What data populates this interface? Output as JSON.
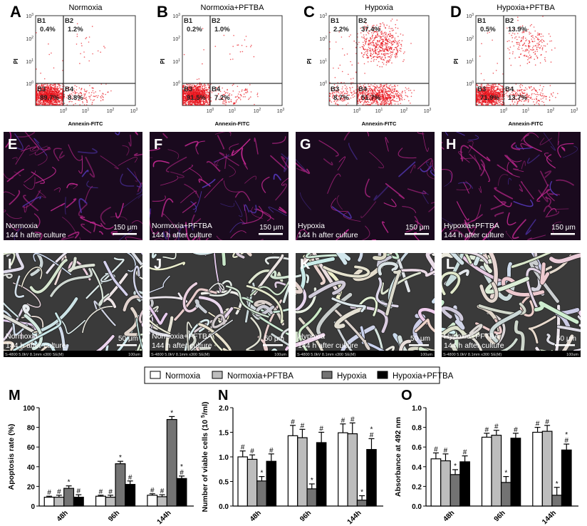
{
  "colors": {
    "normoxia": "#ffffff",
    "normoxia_pftba": "#bdbdbd",
    "hypoxia": "#737373",
    "hypoxia_pftba": "#000000",
    "flow_dots": "#e8141c",
    "fluor_fiber": "#d02a9a"
  },
  "flow_panels": [
    {
      "letter": "A",
      "title": "Normoxia",
      "quadrants": {
        "B1": "0.4%",
        "B2": "1.2%",
        "B3": "89.7%",
        "B4": "8.8%"
      }
    },
    {
      "letter": "B",
      "title": "Normoxia+PFTBA",
      "quadrants": {
        "B1": "0.2%",
        "B2": "1.0%",
        "B3": "91.5%",
        "B4": "7.2%"
      }
    },
    {
      "letter": "C",
      "title": "Hypoxia",
      "quadrants": {
        "B1": "2.2%",
        "B2": "37.4%",
        "B3": "8.7%",
        "B4": "51.7%"
      }
    },
    {
      "letter": "D",
      "title": "Hypoxia+PFTBA",
      "quadrants": {
        "B1": "0.5%",
        "B2": "13.9%",
        "B3": "71.9%",
        "B4": "13.7%"
      }
    }
  ],
  "flow_axes": {
    "xlabel": "Annexin-FITC",
    "ylabel": "PI",
    "tick_base": "10",
    "y_exponents": [
      "3",
      "2",
      "1",
      "0"
    ],
    "x_exponents": [
      "0",
      "1",
      "2",
      "3"
    ]
  },
  "fluor_panels": [
    {
      "letter": "E",
      "group": "Normoxia",
      "time": "144 h after culture",
      "scale": "150 μm"
    },
    {
      "letter": "F",
      "group": "Normoxia+PFTBA",
      "time": "144 h after culture",
      "scale": "150 μm"
    },
    {
      "letter": "G",
      "group": "Hypoxia",
      "time": "144 h after culture",
      "scale": "150 μm"
    },
    {
      "letter": "H",
      "group": "Hypoxia+PFTBA",
      "time": "144 h after culture",
      "scale": "150 μm"
    }
  ],
  "sem_panels": [
    {
      "letter": "I",
      "group": "Normoxia",
      "time": "144 h after culture",
      "scale": "50 μm",
      "info": "S-4800 5.0kV 8.1mm x300 SE(M)",
      "info_scale": "100um"
    },
    {
      "letter": "J",
      "group": "Normoxia+PFTBA",
      "time": "144 h after culture",
      "scale": "50 μm",
      "info": "S-4800 5.0kV 8.1mm x300 SE(M)",
      "info_scale": "100um"
    },
    {
      "letter": "K",
      "group": "Hypoxia",
      "time": "144 h after culture",
      "scale": "50 μm",
      "info": "S-4800 5.0kV 8.1mm x300 SE(M)",
      "info_scale": "100um"
    },
    {
      "letter": "L",
      "group": "Hypoxia+PFTBA",
      "time": "144 h after culture",
      "scale": "50 μm",
      "info": "S-4800 5.0kV 8.1mm x300 SE(M)",
      "info_scale": "100um"
    }
  ],
  "legend": {
    "placement": "top-center",
    "items": [
      "Normoxia",
      "Normoxia+PFTBA",
      "Hypoxia",
      "Hypoxia+PFTBA"
    ]
  },
  "chart_data": [
    {
      "letter": "M",
      "type": "bar",
      "categories": [
        "48h",
        "96h",
        "144h"
      ],
      "ylabel": "Apoptosis rate  (%)",
      "ylabel_sup": "",
      "ylabel_end": "",
      "ylim": [
        0,
        100
      ],
      "yticks": [
        "0",
        "20",
        "40",
        "60",
        "80",
        "100"
      ],
      "series": [
        {
          "name": "Normoxia",
          "values": [
            9,
            10,
            11
          ],
          "errors": [
            1,
            1,
            1.5
          ],
          "marks": [
            "#",
            "#",
            "#"
          ]
        },
        {
          "name": "Normoxia+PFTBA",
          "values": [
            9,
            9,
            9.5
          ],
          "errors": [
            2,
            2,
            2
          ],
          "marks": [
            "#",
            "#",
            "#"
          ]
        },
        {
          "name": "Hypoxia",
          "values": [
            18,
            43,
            88
          ],
          "errors": [
            2.5,
            2.5,
            3
          ],
          "marks": [
            "*",
            "*",
            "*"
          ]
        },
        {
          "name": "Hypoxia+PFTBA",
          "values": [
            9,
            22,
            28
          ],
          "errors": [
            2.5,
            3.5,
            2.5
          ],
          "marks": [
            "#",
            "#",
            "#*"
          ]
        }
      ]
    },
    {
      "letter": "N",
      "type": "bar",
      "categories": [
        "48h",
        "96h",
        "144h"
      ],
      "ylabel": "Number of viable cells (10 ",
      "ylabel_sup": "5",
      "ylabel_end": "/ml)",
      "ylim": [
        0,
        2.0
      ],
      "yticks": [
        "0.0",
        "0.5",
        "1.0",
        "1.5",
        "2.0"
      ],
      "series": [
        {
          "name": "Normoxia",
          "values": [
            1.0,
            1.43,
            1.49
          ],
          "errors": [
            0.12,
            0.21,
            0.18
          ],
          "marks": [
            "#",
            "#",
            "#"
          ]
        },
        {
          "name": "Normoxia+PFTBA",
          "values": [
            0.95,
            1.39,
            1.47
          ],
          "errors": [
            0.09,
            0.17,
            0.22
          ],
          "marks": [
            "#",
            "#",
            "#"
          ]
        },
        {
          "name": "Hypoxia",
          "values": [
            0.51,
            0.35,
            0.12
          ],
          "errors": [
            0.09,
            0.1,
            0.09
          ],
          "marks": [
            "*",
            "*",
            "*"
          ]
        },
        {
          "name": "Hypoxia+PFTBA",
          "values": [
            0.91,
            1.29,
            1.15
          ],
          "errors": [
            0.15,
            0.21,
            0.22
          ],
          "marks": [
            "#",
            "#",
            "#*"
          ]
        }
      ]
    },
    {
      "letter": "O",
      "type": "bar",
      "categories": [
        "48h",
        "96h",
        "144h"
      ],
      "ylabel": "Absorbance at 492 nm",
      "ylabel_sup": "",
      "ylabel_end": "",
      "ylim": [
        0,
        1.0
      ],
      "yticks": [
        "0.0",
        "0.2",
        "0.4",
        "0.6",
        "0.8",
        "1.0"
      ],
      "series": [
        {
          "name": "Normoxia",
          "values": [
            0.48,
            0.7,
            0.75
          ],
          "errors": [
            0.06,
            0.04,
            0.05
          ],
          "marks": [
            "#",
            "#",
            "#"
          ]
        },
        {
          "name": "Normoxia+PFTBA",
          "values": [
            0.46,
            0.72,
            0.76
          ],
          "errors": [
            0.07,
            0.05,
            0.06
          ],
          "marks": [
            "#",
            "#",
            "#"
          ]
        },
        {
          "name": "Hypoxia",
          "values": [
            0.32,
            0.24,
            0.11
          ],
          "errors": [
            0.05,
            0.06,
            0.08
          ],
          "marks": [
            "*",
            "*",
            "*"
          ]
        },
        {
          "name": "Hypoxia+PFTBA",
          "values": [
            0.45,
            0.69,
            0.57
          ],
          "errors": [
            0.06,
            0.05,
            0.06
          ],
          "marks": [
            "#",
            "#",
            "#*"
          ]
        }
      ]
    }
  ]
}
